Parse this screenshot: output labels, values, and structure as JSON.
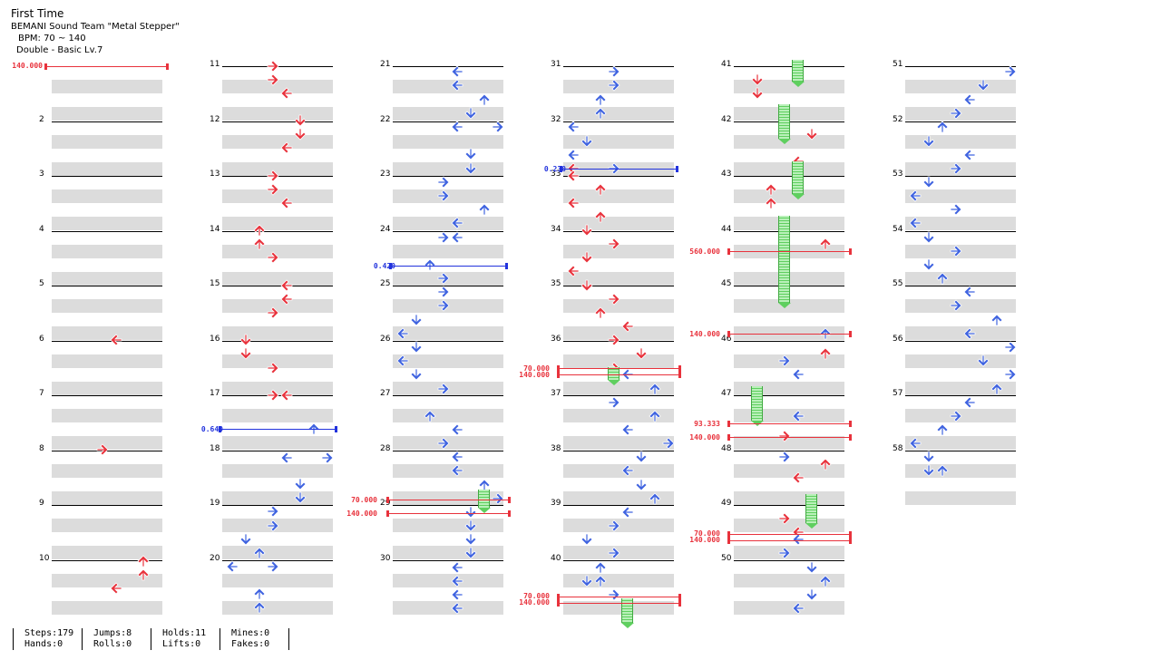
{
  "song": {
    "title": "First Time",
    "artist": "BEMANI Sound Team \"Metal Stepper\"",
    "bpm": "BPM: 70 ~ 140",
    "chart": "Double - Basic Lv.7"
  },
  "colors": {
    "red_note": "#e8323c",
    "blue_note": "#3f63e0",
    "hold_fill": "#b9f0b9",
    "hold_stripe": "#5fcf5f",
    "bpm_change": "#e8323c",
    "stop": "#2233dd",
    "stripe": "#dcdcdc"
  },
  "measure_numbers": [
    2,
    3,
    4,
    5,
    6,
    7,
    8,
    9,
    10,
    11,
    12,
    13,
    14,
    15,
    16,
    17,
    18,
    19,
    20,
    21,
    22,
    23,
    24,
    25,
    26,
    27,
    28,
    29,
    30,
    31,
    32,
    33,
    34,
    35,
    36,
    37,
    38,
    39,
    40,
    41,
    42,
    43,
    44,
    45,
    46,
    47,
    48,
    49,
    50,
    51,
    52,
    53,
    54,
    55,
    56,
    57,
    58
  ],
  "bpm_markers": [
    {
      "label": "140.000",
      "type": "bpm"
    },
    {
      "label": "0.640",
      "type": "stop"
    },
    {
      "label": "0.420",
      "type": "stop"
    },
    {
      "label": "70.000",
      "type": "bpm"
    },
    {
      "label": "140.000",
      "type": "bpm"
    },
    {
      "label": "0.230",
      "type": "stop"
    },
    {
      "label": "70.000",
      "type": "bpm"
    },
    {
      "label": "140.000",
      "type": "bpm"
    },
    {
      "label": "70.000",
      "type": "bpm"
    },
    {
      "label": "140.000",
      "type": "bpm"
    },
    {
      "label": "560.000",
      "type": "bpm"
    },
    {
      "label": "140.000",
      "type": "bpm"
    },
    {
      "label": "93.333",
      "type": "bpm"
    },
    {
      "label": "140.000",
      "type": "bpm"
    },
    {
      "label": "70.000",
      "type": "bpm"
    },
    {
      "label": "140.000",
      "type": "bpm"
    }
  ],
  "stats": {
    "steps": "Steps:179",
    "hands": "Hands:0",
    "jumps": "Jumps:8",
    "rolls": "Rolls:0",
    "holds": "Holds:11",
    "lifts": "Lifts:0",
    "mines": "Mines:0",
    "fakes": "Fakes:0"
  }
}
